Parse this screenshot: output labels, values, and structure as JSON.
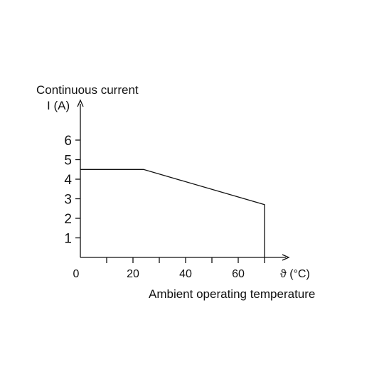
{
  "chart_data": {
    "type": "line",
    "ylabel_line1": "Continuous current",
    "ylabel_line2": "I (A)",
    "xlabel_unit": "ϑ (°C)",
    "xlabel": "Ambient operating temperature",
    "xlim": [
      0,
      80
    ],
    "ylim": [
      0,
      7
    ],
    "x_ticks": [
      0,
      20,
      40,
      60
    ],
    "x_minor_ticks": [
      10,
      30,
      50,
      70
    ],
    "y_ticks": [
      1,
      2,
      3,
      4,
      5,
      6
    ],
    "series": [
      {
        "x": [
          0,
          24,
          70,
          70
        ],
        "y": [
          4.5,
          4.5,
          2.7,
          0
        ]
      }
    ],
    "grid": false,
    "line_color": "#111111"
  }
}
